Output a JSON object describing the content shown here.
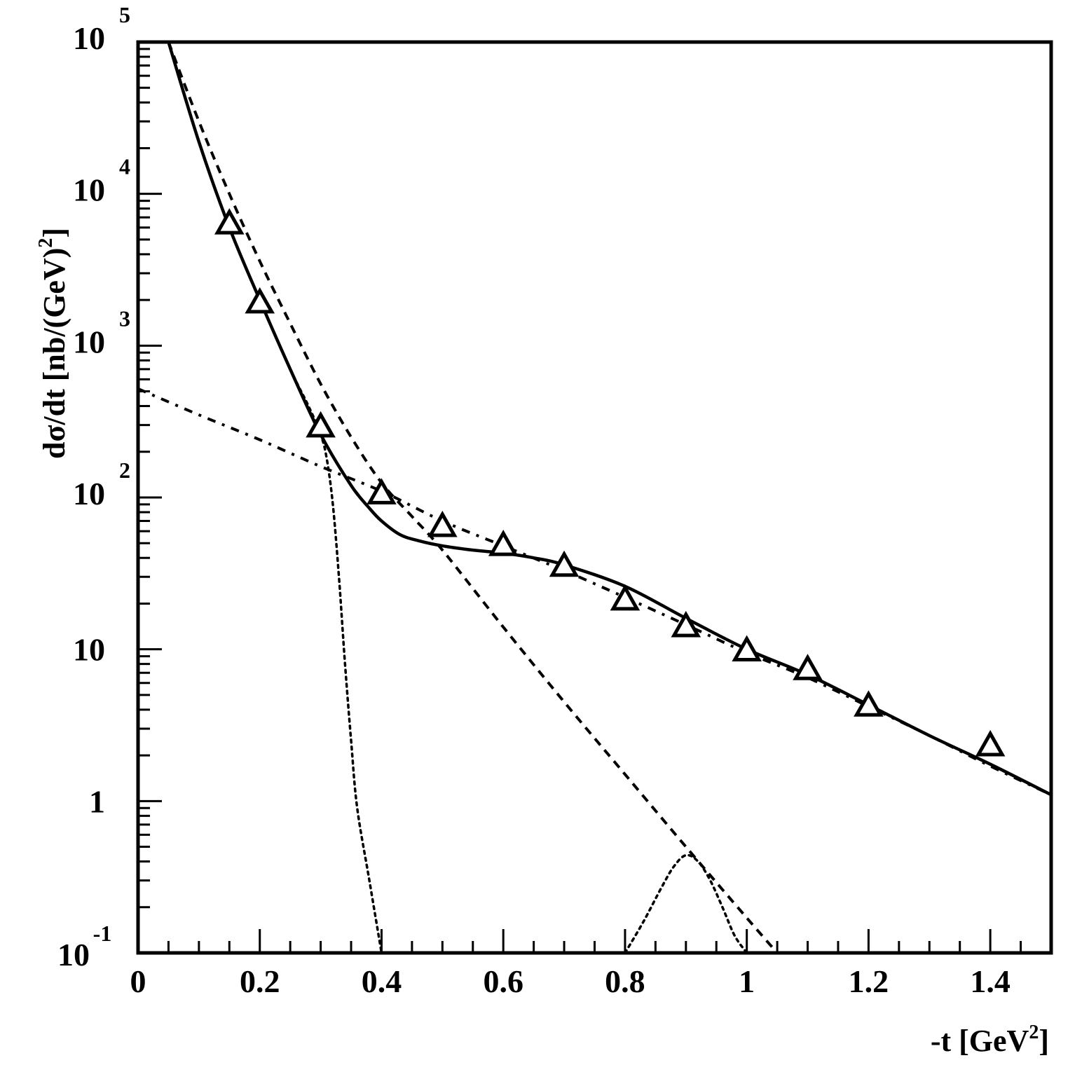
{
  "chart_data": {
    "type": "line",
    "title": "",
    "xlabel": "-t [GeV^2]",
    "ylabel": "dσ/dt [nb/(GeV)^2]",
    "x_scale": "linear",
    "y_scale": "log",
    "xlim": [
      0,
      1.5
    ],
    "ylim": [
      0.1,
      100000
    ],
    "grid": false,
    "legend": null,
    "x_ticks": [
      {
        "value": 0,
        "label": "0"
      },
      {
        "value": 0.2,
        "label": "0.2"
      },
      {
        "value": 0.4,
        "label": "0.4"
      },
      {
        "value": 0.6,
        "label": "0.6"
      },
      {
        "value": 0.8,
        "label": "0.8"
      },
      {
        "value": 1.0,
        "label": "1"
      },
      {
        "value": 1.2,
        "label": "1.2"
      },
      {
        "value": 1.4,
        "label": "1.4"
      }
    ],
    "y_ticks": [
      {
        "value": 100000,
        "base": "10",
        "exp": "5"
      },
      {
        "value": 10000,
        "base": "10",
        "exp": "4"
      },
      {
        "value": 1000,
        "base": "10",
        "exp": "3"
      },
      {
        "value": 100,
        "base": "10",
        "exp": "2"
      },
      {
        "value": 10,
        "base": "10",
        "exp": ""
      },
      {
        "value": 1,
        "base": "1",
        "exp": ""
      },
      {
        "value": 0.1,
        "base": "10",
        "exp": "-1"
      }
    ],
    "series": [
      {
        "name": "data",
        "style": "open-triangle-markers",
        "x": [
          0.15,
          0.2,
          0.3,
          0.4,
          0.5,
          0.6,
          0.7,
          0.8,
          0.9,
          1.0,
          1.1,
          1.2,
          1.4
        ],
        "y": [
          6300,
          1900,
          290,
          105,
          64,
          48,
          35,
          21,
          14,
          9.7,
          7.3,
          4.2,
          2.3
        ]
      },
      {
        "name": "total",
        "style": "solid",
        "x": [
          0.05,
          0.1,
          0.15,
          0.2,
          0.25,
          0.3,
          0.35,
          0.38,
          0.4,
          0.43,
          0.46,
          0.5,
          0.55,
          0.6,
          0.65,
          0.7,
          0.8,
          0.9,
          1.0,
          1.1,
          1.2,
          1.3,
          1.4,
          1.5
        ],
        "y": [
          100000,
          22000,
          6000,
          2000,
          700,
          260,
          120,
          85,
          70,
          57,
          52,
          48,
          45,
          43,
          40,
          36,
          26,
          16,
          10,
          6.8,
          4.3,
          2.7,
          1.75,
          1.1
        ]
      },
      {
        "name": "dashed",
        "style": "dashed",
        "x": [
          0.05,
          0.1,
          0.15,
          0.2,
          0.25,
          0.3,
          0.35,
          0.4,
          0.45,
          0.5,
          0.6,
          0.7,
          0.8,
          0.9,
          1.0,
          1.05
        ],
        "y": [
          100000,
          30000,
          10000,
          3600,
          1400,
          560,
          250,
          125,
          75,
          45,
          14,
          4.5,
          1.5,
          0.5,
          0.17,
          0.1
        ]
      },
      {
        "name": "dash-dot",
        "style": "dash-dot",
        "x": [
          0,
          0.1,
          0.2,
          0.3,
          0.4,
          0.5,
          0.6,
          0.7,
          0.8,
          0.9,
          1.0,
          1.1,
          1.2,
          1.3,
          1.4,
          1.5
        ],
        "y": [
          520,
          350,
          240,
          160,
          110,
          70,
          48,
          33,
          22,
          14.5,
          9.5,
          6.5,
          4.2,
          2.7,
          1.7,
          1.1
        ]
      },
      {
        "name": "dotted-steep",
        "style": "dotted",
        "x": [
          0.05,
          0.1,
          0.15,
          0.2,
          0.25,
          0.28,
          0.3,
          0.31,
          0.32,
          0.33,
          0.34,
          0.35,
          0.36,
          0.38,
          0.4
        ],
        "y": [
          100000,
          22000,
          6000,
          2000,
          700,
          400,
          260,
          180,
          90,
          30,
          8,
          2.5,
          0.9,
          0.3,
          0.1
        ]
      },
      {
        "name": "dotted-bump",
        "style": "dotted",
        "x": [
          0.8,
          0.83,
          0.86,
          0.88,
          0.9,
          0.92,
          0.94,
          0.96,
          0.98,
          1.0
        ],
        "y": [
          0.1,
          0.16,
          0.27,
          0.37,
          0.44,
          0.4,
          0.3,
          0.2,
          0.13,
          0.1
        ]
      }
    ]
  },
  "axes": {
    "x_title_main": "-t [GeV",
    "x_title_sup": "2",
    "x_title_close": "]",
    "y_title_main": "dσ/dt  [nb/(GeV)",
    "y_title_sup": "2",
    "y_title_close": "]"
  },
  "colors": {
    "line": "#000000",
    "background": "#ffffff"
  }
}
